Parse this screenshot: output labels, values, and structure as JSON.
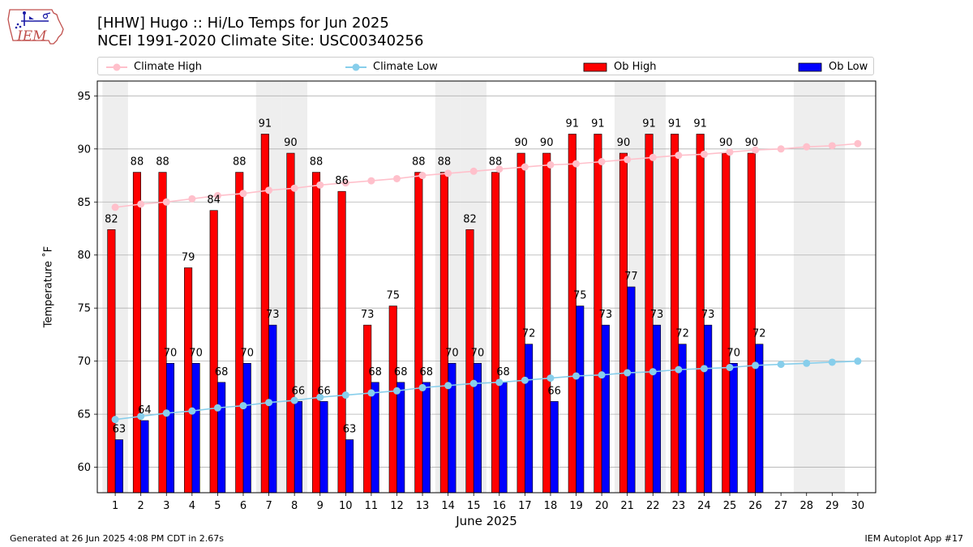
{
  "header": {
    "title_line1": "[HHW] Hugo :: Hi/Lo Temps for Jun 2025",
    "title_line2": "NCEI 1991-2020 Climate Site: USC00340256"
  },
  "logo": {
    "text": "IEM"
  },
  "legend": {
    "climate_high": "Climate High",
    "climate_low": "Climate Low",
    "ob_high": "Ob High",
    "ob_low": "Ob Low"
  },
  "footer": {
    "left": "Generated at 26 Jun 2025 4:08 PM CDT in 2.67s",
    "right": "IEM Autoplot App #17"
  },
  "colors": {
    "ob_high": "#ff0000",
    "ob_low": "#0000ff",
    "climate_high": "#ffc0cb",
    "climate_low": "#87ceeb",
    "weekend_shade": "#eeeeee",
    "grid": "#b0b0b0"
  },
  "chart_data": {
    "type": "bar",
    "xlabel": "June 2025",
    "ylabel": "Temperature ˚F",
    "ylim": [
      57.6,
      96.4
    ],
    "yticks": [
      60,
      65,
      70,
      75,
      80,
      85,
      90,
      95
    ],
    "grid": "horizontal",
    "legend_position": "top",
    "categories": [
      "1",
      "2",
      "3",
      "4",
      "5",
      "6",
      "7",
      "8",
      "9",
      "10",
      "11",
      "12",
      "13",
      "14",
      "15",
      "16",
      "17",
      "18",
      "19",
      "20",
      "21",
      "22",
      "23",
      "24",
      "25",
      "26",
      "27",
      "28",
      "29",
      "30"
    ],
    "weekend_days": [
      1,
      7,
      8,
      14,
      15,
      21,
      22,
      28,
      29
    ],
    "series": [
      {
        "name": "Ob High",
        "kind": "bar",
        "values": [
          82.4,
          87.8,
          87.8,
          78.8,
          84.2,
          87.8,
          91.4,
          89.6,
          87.8,
          86.0,
          73.4,
          75.2,
          87.8,
          87.8,
          82.4,
          87.8,
          89.6,
          89.6,
          91.4,
          91.4,
          89.6,
          91.4,
          91.4,
          91.4,
          89.6,
          89.6,
          null,
          null,
          null,
          null
        ],
        "labels": [
          "82",
          "88",
          "88",
          "79",
          "84",
          "88",
          "91",
          "90",
          "88",
          "86",
          "73",
          "75",
          "88",
          "88",
          "82",
          "88",
          "90",
          "90",
          "91",
          "91",
          "90",
          "91",
          "91",
          "91",
          "90",
          "90",
          "",
          "",
          "",
          ""
        ]
      },
      {
        "name": "Ob Low",
        "kind": "bar",
        "values": [
          62.6,
          64.4,
          69.8,
          69.8,
          68.0,
          69.8,
          73.4,
          66.2,
          66.2,
          62.6,
          68.0,
          68.0,
          68.0,
          69.8,
          69.8,
          68.0,
          71.6,
          66.2,
          75.2,
          73.4,
          77.0,
          73.4,
          71.6,
          73.4,
          69.8,
          71.6,
          null,
          null,
          null,
          null
        ],
        "labels": [
          "63",
          "64",
          "70",
          "70",
          "68",
          "70",
          "73",
          "66",
          "66",
          "63",
          "68",
          "68",
          "68",
          "70",
          "70",
          "68",
          "72",
          "66",
          "75",
          "73",
          "77",
          "73",
          "72",
          "73",
          "70",
          "72",
          "",
          "",
          "",
          ""
        ]
      },
      {
        "name": "Climate High",
        "kind": "line",
        "values": [
          84.5,
          84.8,
          85.0,
          85.3,
          85.6,
          85.8,
          86.1,
          86.3,
          86.6,
          86.8,
          87.0,
          87.2,
          87.5,
          87.7,
          87.9,
          88.1,
          88.3,
          88.5,
          88.6,
          88.8,
          89.0,
          89.2,
          89.4,
          89.5,
          89.7,
          89.9,
          90.0,
          90.2,
          90.3,
          90.5
        ]
      },
      {
        "name": "Climate Low",
        "kind": "line",
        "values": [
          64.5,
          64.8,
          65.1,
          65.3,
          65.6,
          65.8,
          66.1,
          66.3,
          66.6,
          66.8,
          67.0,
          67.2,
          67.5,
          67.7,
          67.9,
          68.0,
          68.2,
          68.4,
          68.6,
          68.7,
          68.9,
          69.0,
          69.2,
          69.3,
          69.4,
          69.6,
          69.7,
          69.8,
          69.9,
          70.0
        ]
      }
    ]
  }
}
